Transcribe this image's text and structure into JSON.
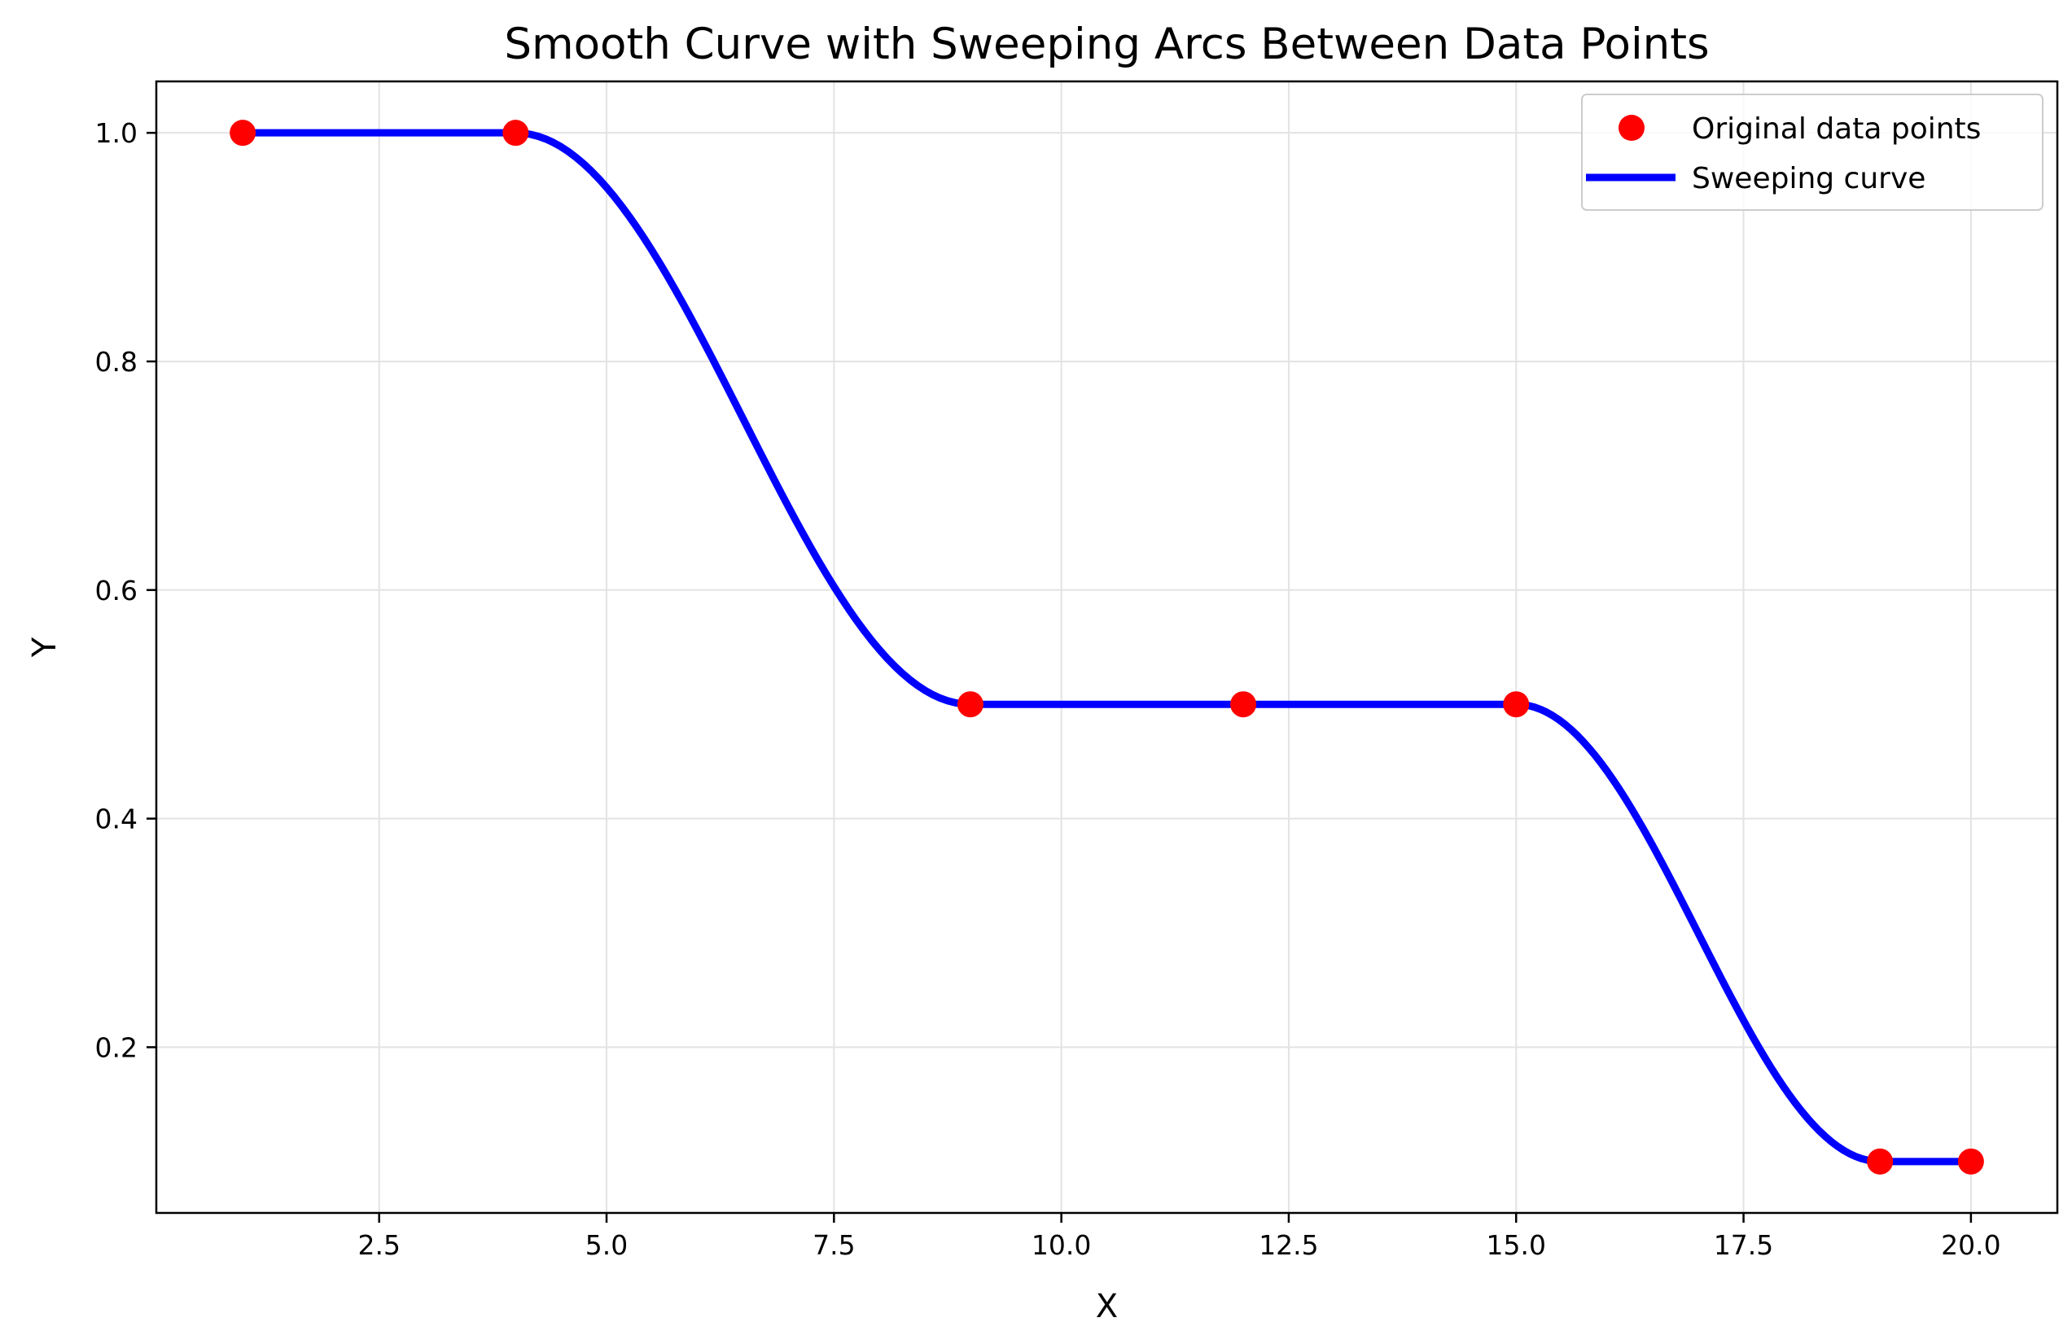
{
  "chart_data": {
    "type": "line",
    "title": "Smooth Curve with Sweeping Arcs Between Data Points",
    "xlabel": "X",
    "ylabel": "Y",
    "xlim": [
      0.05,
      20.95
    ],
    "ylim": [
      0.055,
      1.045
    ],
    "xticks": [
      2.5,
      5.0,
      7.5,
      10.0,
      12.5,
      15.0,
      17.5,
      20.0
    ],
    "xtick_labels": [
      "2.5",
      "5.0",
      "7.5",
      "10.0",
      "12.5",
      "15.0",
      "17.5",
      "20.0"
    ],
    "yticks": [
      0.2,
      0.4,
      0.6,
      0.8,
      1.0
    ],
    "ytick_labels": [
      "0.2",
      "0.4",
      "0.6",
      "0.8",
      "1.0"
    ],
    "grid": true,
    "legend_position": "top-right",
    "series": [
      {
        "name": "Original data points",
        "kind": "scatter",
        "color": "#ff0000",
        "x": [
          1,
          4,
          9,
          12,
          15,
          19,
          20
        ],
        "y": [
          1.0,
          1.0,
          0.5,
          0.5,
          0.5,
          0.1,
          0.1
        ]
      },
      {
        "name": "Sweeping curve",
        "kind": "line",
        "color": "#0000ff",
        "x": [
          1,
          4,
          9,
          12,
          15,
          19,
          20
        ],
        "y": [
          1.0,
          1.0,
          0.5,
          0.5,
          0.5,
          0.1,
          0.1
        ]
      }
    ]
  }
}
